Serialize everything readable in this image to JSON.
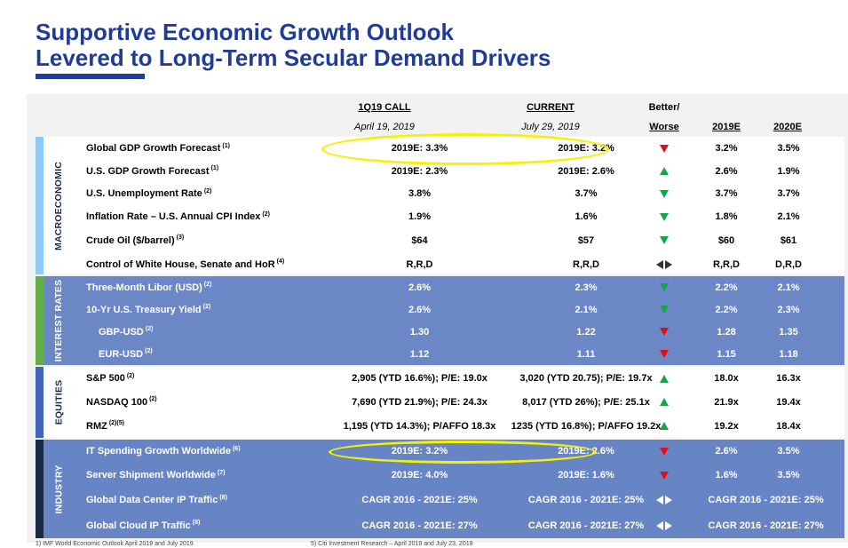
{
  "title": {
    "line1": "Supportive Economic Growth Outlook",
    "line2": "Levered to Long-Term Secular Demand Drivers"
  },
  "headers": {
    "call": "1Q19 CALL",
    "call_date": "April 19, 2019",
    "current": "CURRENT",
    "current_date": "July 29, 2019",
    "better1": "Better/",
    "better2": "Worse",
    "e2019": "2019E",
    "e2020": "2020E"
  },
  "sections": {
    "macro": "MACROECONOMIC",
    "rates": "INTEREST RATES",
    "equities": "EQUITIES",
    "industry": "INDUSTRY"
  },
  "rows": [
    {
      "label": "Global GDP Growth Forecast",
      "note": "(1)",
      "call": "2019E: 3.3%",
      "current": "2019E: 3.2%",
      "trend": "down-red",
      "e2019": "3.2%",
      "e2020": "3.5%"
    },
    {
      "label": "U.S. GDP Growth Forecast",
      "note": "(1)",
      "call": "2019E: 2.3%",
      "current": "2019E: 2.6%",
      "trend": "up-green",
      "e2019": "2.6%",
      "e2020": "1.9%"
    },
    {
      "label": "U.S. Unemployment Rate",
      "note": "(2)",
      "call": "3.8%",
      "current": "3.7%",
      "trend": "down-green",
      "e2019": "3.7%",
      "e2020": "3.7%"
    },
    {
      "label": "Inflation Rate – U.S. Annual CPI Index",
      "note": "(2)",
      "call": "1.9%",
      "current": "1.6%",
      "trend": "down-green",
      "e2019": "1.8%",
      "e2020": "2.1%"
    },
    {
      "label": "Crude Oil ($/barrel)",
      "note": "(3)",
      "call": "$64",
      "current": "$57",
      "trend": "down-green",
      "e2019": "$60",
      "e2020": "$61"
    },
    {
      "label": "Control of White House, Senate and HoR",
      "note": "(4)",
      "call": "R,R,D",
      "current": "R,R,D",
      "trend": "flat",
      "e2019": "R,R,D",
      "e2020": "D,R,D"
    },
    {
      "label": "Three-Month Libor (USD)",
      "note": "(2)",
      "call": "2.6%",
      "current": "2.3%",
      "trend": "down-green",
      "e2019": "2.2%",
      "e2020": "2.1%"
    },
    {
      "label": "10-Yr U.S. Treasury Yield",
      "note": "(2)",
      "call": "2.6%",
      "current": "2.1%",
      "trend": "down-green",
      "e2019": "2.2%",
      "e2020": "2.3%"
    },
    {
      "label": "GBP-USD",
      "note": "(2)",
      "call": "1.30",
      "current": "1.22",
      "trend": "down-red",
      "e2019": "1.28",
      "e2020": "1.35"
    },
    {
      "label": "EUR-USD",
      "note": "(2)",
      "call": "1.12",
      "current": "1.11",
      "trend": "down-red",
      "e2019": "1.15",
      "e2020": "1.18"
    },
    {
      "label": "S&P 500",
      "note": "(2)",
      "call": "2,905 (YTD 16.6%); P/E: 19.0x",
      "current": "3,020 (YTD 20.75); P/E: 19.7x",
      "trend": "up-green",
      "e2019": "18.0x",
      "e2020": "16.3x"
    },
    {
      "label": "NASDAQ 100",
      "note": "(2)",
      "call": "7,690 (YTD 21.9%); P/E: 24.3x",
      "current": "8,017 (YTD 26%); P/E: 25.1x",
      "trend": "up-green",
      "e2019": "21.9x",
      "e2020": "19.4x"
    },
    {
      "label": "RMZ",
      "note": "(2)(5)",
      "call": "1,195 (YTD 14.3%); P/AFFO 18.3x",
      "current": "1235 (YTD 16.8%); P/AFFO 19.2x",
      "trend": "up-green",
      "e2019": "19.2x",
      "e2020": "18.4x"
    },
    {
      "label": "IT Spending Growth Worldwide",
      "note": "(6)",
      "call": "2019E: 3.2%",
      "current": "2019E: 2.6%",
      "trend": "down-red",
      "e2019": "2.6%",
      "e2020": "3.5%"
    },
    {
      "label": "Server Shipment Worldwide",
      "note": "(7)",
      "call": "2019E: 4.0%",
      "current": "2019E: 1.6%",
      "trend": "down-red",
      "e2019": "1.6%",
      "e2020": "3.5%"
    },
    {
      "label": "Global Data Center IP Traffic",
      "note": "(8)",
      "call": "CAGR 2016 - 2021E: 25%",
      "current": "CAGR 2016 - 2021E: 25%",
      "trend": "flat",
      "span": "CAGR 2016 - 2021E: 25%"
    },
    {
      "label": "Global Cloud IP Traffic",
      "note": "(8)",
      "call": "CAGR 2016 - 2021E: 27%",
      "current": "CAGR 2016 - 2021E: 27%",
      "trend": "flat",
      "span": "CAGR 2016 - 2021E: 27%"
    }
  ],
  "footer": {
    "left": "1)  IMF World Economic Outlook April 2019 and July 2019",
    "right": "5)  Citi Investment Research – April 2019 and July 23, 2019"
  },
  "colors": {
    "title": "#1f3c99",
    "macro_bar": "#8ecaf5",
    "rates_bar": "#62b04a",
    "equities_bar": "#3f66bf",
    "industry_bar": "#1a2a44",
    "band_blue": "#6b87c6",
    "highlight": "#f5f200"
  }
}
